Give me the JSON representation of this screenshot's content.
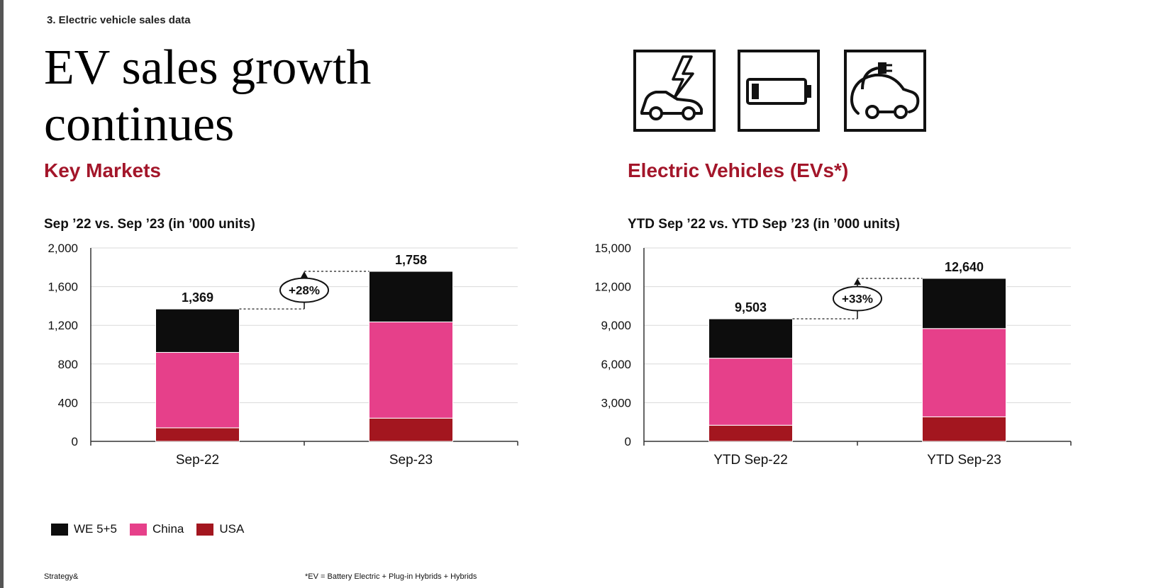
{
  "section_label": "3. Electric vehicle sales data",
  "title": "EV sales growth continues",
  "left": {
    "subhead": "Key Markets",
    "caption": "Sep ’22 vs. Sep ’23 (in ’000 units)"
  },
  "right": {
    "subhead": "Electric Vehicles (EVs*)",
    "caption": "YTD Sep ’22 vs. YTD Sep ’23 (in ’000 units)"
  },
  "icons": [
    "car-bolt-icon",
    "battery-icon",
    "plug-car-icon"
  ],
  "colors": {
    "we55": "#0d0d0d",
    "china": "#e6408a",
    "usa": "#a3161f",
    "accent": "#a3162a"
  },
  "legend": [
    {
      "label": "WE 5+5",
      "color_key": "we55"
    },
    {
      "label": "China",
      "color_key": "china"
    },
    {
      "label": "USA",
      "color_key": "usa"
    }
  ],
  "footer": {
    "source": "Strategy&",
    "note": "*EV = Battery Electric + Plug-in Hybrids + Hybrids"
  },
  "chart_data": [
    {
      "type": "bar",
      "stacked": true,
      "categories": [
        "Sep-22",
        "Sep-23"
      ],
      "series": [
        {
          "name": "USA",
          "values": [
            140,
            240
          ]
        },
        {
          "name": "China",
          "values": [
            780,
            995
          ]
        },
        {
          "name": "WE 5+5",
          "values": [
            449,
            523
          ]
        }
      ],
      "totals": [
        1369,
        1758
      ],
      "total_labels": [
        "1,369",
        "1,758"
      ],
      "growth_label": "+28%",
      "ylim": [
        0,
        2000
      ],
      "yticks": [
        0,
        400,
        800,
        1200,
        1600,
        2000
      ],
      "ytick_labels": [
        "0",
        "400",
        "800",
        "1,200",
        "1,600",
        "2,000"
      ],
      "grid": true
    },
    {
      "type": "bar",
      "stacked": true,
      "categories": [
        "YTD Sep-22",
        "YTD Sep-23"
      ],
      "series": [
        {
          "name": "USA",
          "values": [
            1250,
            1900
          ]
        },
        {
          "name": "China",
          "values": [
            5200,
            6850
          ]
        },
        {
          "name": "WE 5+5",
          "values": [
            3053,
            3890
          ]
        }
      ],
      "totals": [
        9503,
        12640
      ],
      "total_labels": [
        "9,503",
        "12,640"
      ],
      "growth_label": "+33%",
      "ylim": [
        0,
        15000
      ],
      "yticks": [
        0,
        3000,
        6000,
        9000,
        12000,
        15000
      ],
      "ytick_labels": [
        "0",
        "3,000",
        "6,000",
        "9,000",
        "12,000",
        "15,000"
      ],
      "grid": true
    }
  ]
}
